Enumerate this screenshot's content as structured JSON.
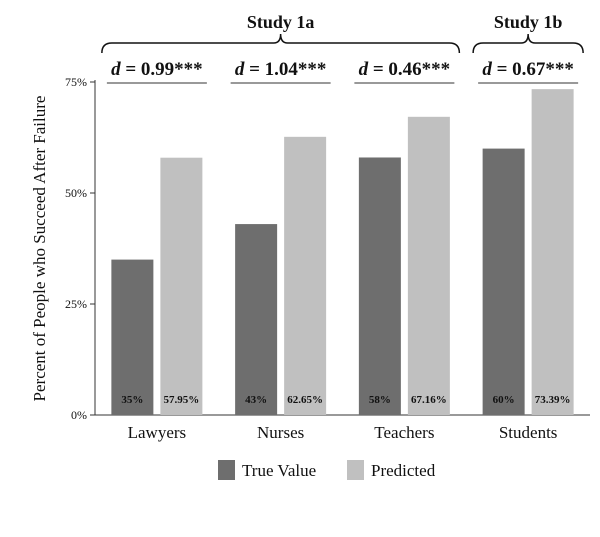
{
  "chart_data": {
    "type": "bar",
    "categories": [
      "Lawyers",
      "Nurses",
      "Teachers",
      "Students"
    ],
    "series": [
      {
        "name": "True Value",
        "color": "#6e6e6e",
        "values": [
          35,
          43,
          58,
          60
        ],
        "labels": [
          "35%",
          "43%",
          "58%",
          "60%"
        ]
      },
      {
        "name": "Predicted",
        "color": "#c0c0c0",
        "values": [
          57.95,
          62.65,
          67.16,
          73.39
        ],
        "labels": [
          "57.95%",
          "62.65%",
          "67.16%",
          "73.39%"
        ]
      }
    ],
    "ylabel": "Percent of People who Succeed After Failure",
    "xlabel": "",
    "ylim": [
      0,
      75
    ],
    "yticks": [
      0,
      25,
      50,
      75
    ],
    "ytick_labels": [
      "0%",
      "25%",
      "50%",
      "75%"
    ],
    "grid": false,
    "legend_position": "bottom",
    "effect_sizes": [
      {
        "category": "Lawyers",
        "d_symbol": "d",
        "text": " = 0.99***"
      },
      {
        "category": "Nurses",
        "d_symbol": "d",
        "text": " = 1.04***"
      },
      {
        "category": "Teachers",
        "d_symbol": "d",
        "text": " = 0.46***"
      },
      {
        "category": "Students",
        "d_symbol": "d",
        "text": " = 0.67***"
      }
    ],
    "study_groups": [
      {
        "label": "Study 1a",
        "categories": [
          "Lawyers",
          "Nurses",
          "Teachers"
        ]
      },
      {
        "label": "Study 1b",
        "categories": [
          "Students"
        ]
      }
    ]
  }
}
